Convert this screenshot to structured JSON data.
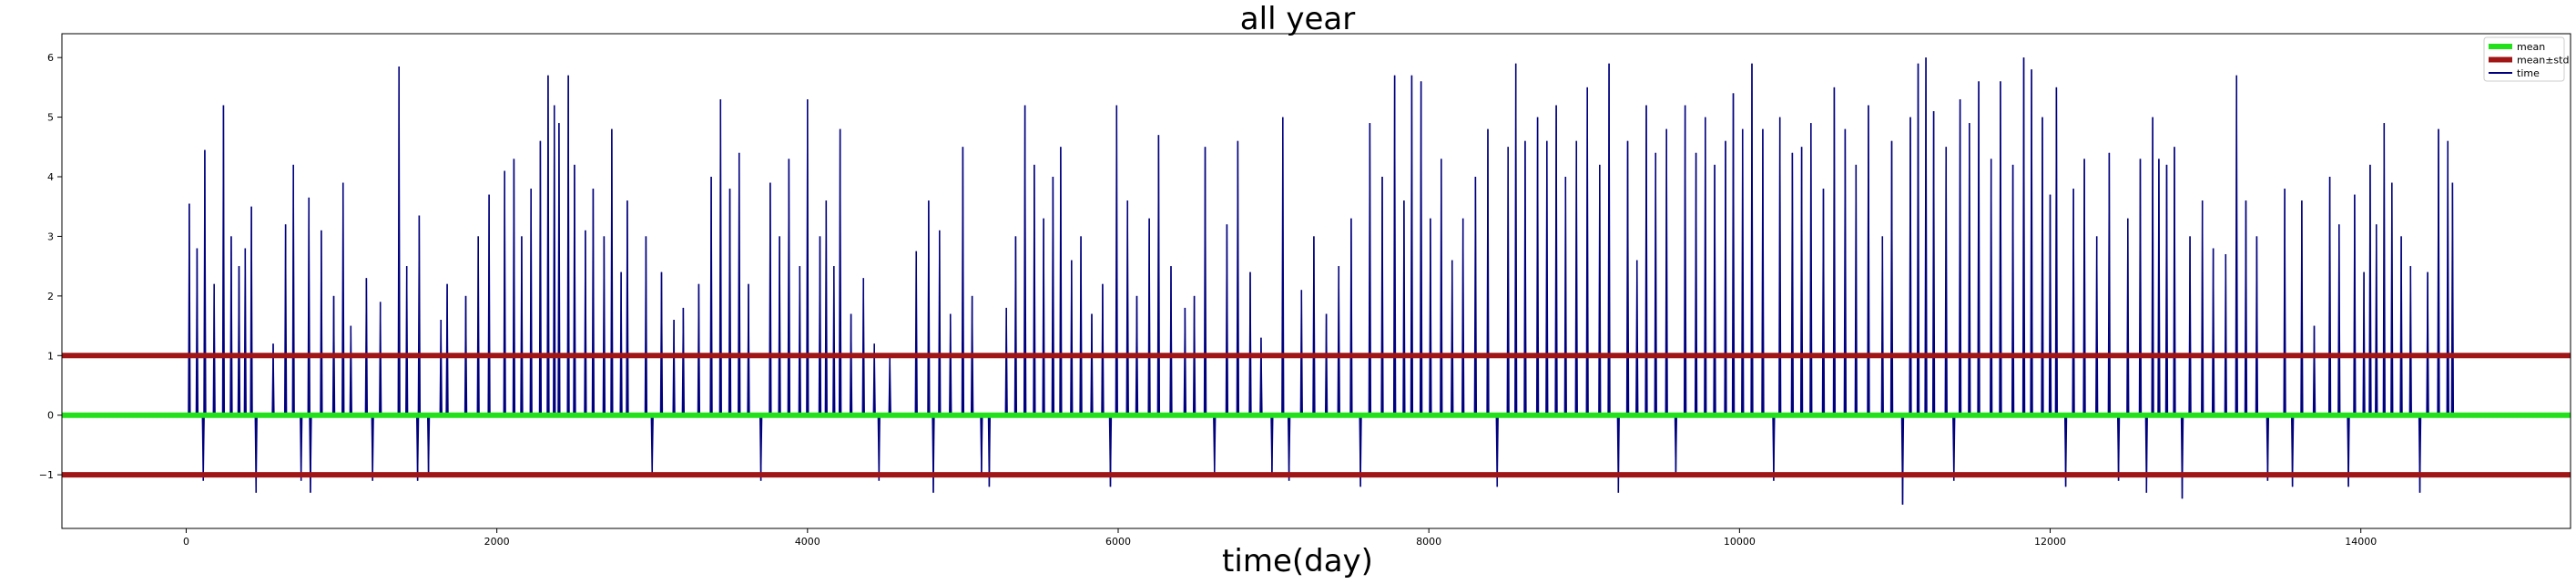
{
  "chart_data": {
    "type": "line",
    "title": "all year",
    "xlabel": "time(day)",
    "ylabel": "",
    "xlim": [
      -800,
      15350
    ],
    "ylim": [
      -1.9,
      6.4
    ],
    "x_ticks": [
      0,
      2000,
      4000,
      6000,
      8000,
      10000,
      12000,
      14000
    ],
    "x_tick_labels": [
      "0",
      "2000",
      "4000",
      "6000",
      "8000",
      "10000",
      "12000",
      "14000"
    ],
    "y_ticks": [
      -1,
      0,
      1,
      2,
      3,
      4,
      5,
      6
    ],
    "y_tick_labels": [
      "−1",
      "0",
      "1",
      "2",
      "3",
      "4",
      "5",
      "6"
    ],
    "grid": false,
    "legend_position": "top-right",
    "series": [
      {
        "name": "mean",
        "type": "hline",
        "value": 0.0,
        "color": "#22e01a"
      },
      {
        "name": "mean±std",
        "type": "hline",
        "values": [
          1.0,
          -1.0
        ],
        "color": "#a01616"
      },
      {
        "name": "time",
        "type": "line",
        "color": "#00007f",
        "x_range": [
          0,
          14600
        ],
        "baseline": 0.0,
        "peaks": [
          {
            "x": 20,
            "y": 3.55
          },
          {
            "x": 70,
            "y": 2.8
          },
          {
            "x": 110,
            "y": -1.1
          },
          {
            "x": 120,
            "y": 4.45
          },
          {
            "x": 180,
            "y": 2.2
          },
          {
            "x": 240,
            "y": 5.2
          },
          {
            "x": 290,
            "y": 3.0
          },
          {
            "x": 340,
            "y": 2.5
          },
          {
            "x": 380,
            "y": 2.8
          },
          {
            "x": 420,
            "y": 3.5
          },
          {
            "x": 450,
            "y": -1.3
          },
          {
            "x": 560,
            "y": 1.2
          },
          {
            "x": 640,
            "y": 3.2
          },
          {
            "x": 690,
            "y": 4.2
          },
          {
            "x": 740,
            "y": -1.1
          },
          {
            "x": 790,
            "y": 3.65
          },
          {
            "x": 800,
            "y": -1.3
          },
          {
            "x": 870,
            "y": 3.1
          },
          {
            "x": 950,
            "y": 2.0
          },
          {
            "x": 1010,
            "y": 3.9
          },
          {
            "x": 1060,
            "y": 1.5
          },
          {
            "x": 1160,
            "y": 2.3
          },
          {
            "x": 1200,
            "y": -1.1
          },
          {
            "x": 1250,
            "y": 1.9
          },
          {
            "x": 1370,
            "y": 5.85
          },
          {
            "x": 1420,
            "y": 2.5
          },
          {
            "x": 1490,
            "y": -1.1
          },
          {
            "x": 1500,
            "y": 3.35
          },
          {
            "x": 1560,
            "y": -1.0
          },
          {
            "x": 1640,
            "y": 1.6
          },
          {
            "x": 1680,
            "y": 2.2
          },
          {
            "x": 1800,
            "y": 2.0
          },
          {
            "x": 1880,
            "y": 3.0
          },
          {
            "x": 1950,
            "y": 3.7
          },
          {
            "x": 2050,
            "y": 4.1
          },
          {
            "x": 2110,
            "y": 4.3
          },
          {
            "x": 2160,
            "y": 3.0
          },
          {
            "x": 2220,
            "y": 3.8
          },
          {
            "x": 2280,
            "y": 4.6
          },
          {
            "x": 2330,
            "y": 5.7
          },
          {
            "x": 2370,
            "y": 5.2
          },
          {
            "x": 2400,
            "y": 4.9
          },
          {
            "x": 2460,
            "y": 5.7
          },
          {
            "x": 2500,
            "y": 4.2
          },
          {
            "x": 2570,
            "y": 3.1
          },
          {
            "x": 2620,
            "y": 3.8
          },
          {
            "x": 2690,
            "y": 3.0
          },
          {
            "x": 2740,
            "y": 4.8
          },
          {
            "x": 2800,
            "y": 2.4
          },
          {
            "x": 2840,
            "y": 3.6
          },
          {
            "x": 2960,
            "y": 3.0
          },
          {
            "x": 3000,
            "y": -1.0
          },
          {
            "x": 3060,
            "y": 2.4
          },
          {
            "x": 3140,
            "y": 1.6
          },
          {
            "x": 3200,
            "y": 1.8
          },
          {
            "x": 3300,
            "y": 2.2
          },
          {
            "x": 3380,
            "y": 4.0
          },
          {
            "x": 3440,
            "y": 5.3
          },
          {
            "x": 3500,
            "y": 3.8
          },
          {
            "x": 3560,
            "y": 4.4
          },
          {
            "x": 3620,
            "y": 2.2
          },
          {
            "x": 3700,
            "y": -1.1
          },
          {
            "x": 3760,
            "y": 3.9
          },
          {
            "x": 3820,
            "y": 3.0
          },
          {
            "x": 3880,
            "y": 4.3
          },
          {
            "x": 3950,
            "y": 2.5
          },
          {
            "x": 4000,
            "y": 5.3
          },
          {
            "x": 4080,
            "y": 3.0
          },
          {
            "x": 4120,
            "y": 3.6
          },
          {
            "x": 4170,
            "y": 2.5
          },
          {
            "x": 4210,
            "y": 4.8
          },
          {
            "x": 4280,
            "y": 1.7
          },
          {
            "x": 4360,
            "y": 2.3
          },
          {
            "x": 4430,
            "y": 1.2
          },
          {
            "x": 4460,
            "y": -1.1
          },
          {
            "x": 4530,
            "y": 1.0
          },
          {
            "x": 4700,
            "y": 2.75
          },
          {
            "x": 4780,
            "y": 3.6
          },
          {
            "x": 4810,
            "y": -1.3
          },
          {
            "x": 4850,
            "y": 3.1
          },
          {
            "x": 4920,
            "y": 1.7
          },
          {
            "x": 5000,
            "y": 4.5
          },
          {
            "x": 5060,
            "y": 2.0
          },
          {
            "x": 5120,
            "y": -1.0
          },
          {
            "x": 5170,
            "y": -1.2
          },
          {
            "x": 5280,
            "y": 1.8
          },
          {
            "x": 5340,
            "y": 3.0
          },
          {
            "x": 5400,
            "y": 5.2
          },
          {
            "x": 5460,
            "y": 4.2
          },
          {
            "x": 5520,
            "y": 3.3
          },
          {
            "x": 5580,
            "y": 4.0
          },
          {
            "x": 5630,
            "y": 4.5
          },
          {
            "x": 5700,
            "y": 2.6
          },
          {
            "x": 5760,
            "y": 3.0
          },
          {
            "x": 5830,
            "y": 1.7
          },
          {
            "x": 5900,
            "y": 2.2
          },
          {
            "x": 5950,
            "y": -1.2
          },
          {
            "x": 5990,
            "y": 5.2
          },
          {
            "x": 6060,
            "y": 3.6
          },
          {
            "x": 6120,
            "y": 2.0
          },
          {
            "x": 6200,
            "y": 3.3
          },
          {
            "x": 6260,
            "y": 4.7
          },
          {
            "x": 6340,
            "y": 2.5
          },
          {
            "x": 6430,
            "y": 1.8
          },
          {
            "x": 6490,
            "y": 2.0
          },
          {
            "x": 6560,
            "y": 4.5
          },
          {
            "x": 6620,
            "y": -1.0
          },
          {
            "x": 6700,
            "y": 3.2
          },
          {
            "x": 6770,
            "y": 4.6
          },
          {
            "x": 6850,
            "y": 2.4
          },
          {
            "x": 6920,
            "y": 1.3
          },
          {
            "x": 6990,
            "y": -1.0
          },
          {
            "x": 7060,
            "y": 5.0
          },
          {
            "x": 7100,
            "y": -1.1
          },
          {
            "x": 7180,
            "y": 2.1
          },
          {
            "x": 7260,
            "y": 3.0
          },
          {
            "x": 7340,
            "y": 1.7
          },
          {
            "x": 7420,
            "y": 2.5
          },
          {
            "x": 7500,
            "y": 3.3
          },
          {
            "x": 7560,
            "y": -1.2
          },
          {
            "x": 7620,
            "y": 4.9
          },
          {
            "x": 7700,
            "y": 4.0
          },
          {
            "x": 7780,
            "y": 5.7
          },
          {
            "x": 7840,
            "y": 3.6
          },
          {
            "x": 7890,
            "y": 5.7
          },
          {
            "x": 7950,
            "y": 5.6
          },
          {
            "x": 8010,
            "y": 3.3
          },
          {
            "x": 8080,
            "y": 4.3
          },
          {
            "x": 8150,
            "y": 2.6
          },
          {
            "x": 8220,
            "y": 3.3
          },
          {
            "x": 8300,
            "y": 4.0
          },
          {
            "x": 8380,
            "y": 4.8
          },
          {
            "x": 8440,
            "y": -1.2
          },
          {
            "x": 8510,
            "y": 4.5
          },
          {
            "x": 8560,
            "y": 5.9
          },
          {
            "x": 8620,
            "y": 4.6
          },
          {
            "x": 8700,
            "y": 5.0
          },
          {
            "x": 8760,
            "y": 4.6
          },
          {
            "x": 8820,
            "y": 5.2
          },
          {
            "x": 8880,
            "y": 4.0
          },
          {
            "x": 8950,
            "y": 4.6
          },
          {
            "x": 9020,
            "y": 5.5
          },
          {
            "x": 9100,
            "y": 4.2
          },
          {
            "x": 9160,
            "y": 5.9
          },
          {
            "x": 9220,
            "y": -1.3
          },
          {
            "x": 9280,
            "y": 4.6
          },
          {
            "x": 9340,
            "y": 2.6
          },
          {
            "x": 9400,
            "y": 5.2
          },
          {
            "x": 9460,
            "y": 4.4
          },
          {
            "x": 9530,
            "y": 4.8
          },
          {
            "x": 9590,
            "y": -1.0
          },
          {
            "x": 9650,
            "y": 5.2
          },
          {
            "x": 9720,
            "y": 4.4
          },
          {
            "x": 9780,
            "y": 5.0
          },
          {
            "x": 9840,
            "y": 4.2
          },
          {
            "x": 9910,
            "y": 4.6
          },
          {
            "x": 9960,
            "y": 5.4
          },
          {
            "x": 10020,
            "y": 4.8
          },
          {
            "x": 10080,
            "y": 5.9
          },
          {
            "x": 10150,
            "y": 4.8
          },
          {
            "x": 10220,
            "y": -1.1
          },
          {
            "x": 10260,
            "y": 5.0
          },
          {
            "x": 10340,
            "y": 4.4
          },
          {
            "x": 10400,
            "y": 4.5
          },
          {
            "x": 10460,
            "y": 4.9
          },
          {
            "x": 10540,
            "y": 3.8
          },
          {
            "x": 10610,
            "y": 5.5
          },
          {
            "x": 10680,
            "y": 4.8
          },
          {
            "x": 10750,
            "y": 4.2
          },
          {
            "x": 10830,
            "y": 5.2
          },
          {
            "x": 10920,
            "y": 3.0
          },
          {
            "x": 10980,
            "y": 4.6
          },
          {
            "x": 11050,
            "y": -1.5
          },
          {
            "x": 11100,
            "y": 5.0
          },
          {
            "x": 11150,
            "y": 5.9
          },
          {
            "x": 11200,
            "y": 6.0
          },
          {
            "x": 11250,
            "y": 5.1
          },
          {
            "x": 11330,
            "y": 4.5
          },
          {
            "x": 11380,
            "y": -1.1
          },
          {
            "x": 11420,
            "y": 5.3
          },
          {
            "x": 11480,
            "y": 4.9
          },
          {
            "x": 11540,
            "y": 5.6
          },
          {
            "x": 11620,
            "y": 4.3
          },
          {
            "x": 11680,
            "y": 5.6
          },
          {
            "x": 11760,
            "y": 4.2
          },
          {
            "x": 11830,
            "y": 6.0
          },
          {
            "x": 11880,
            "y": 5.8
          },
          {
            "x": 11950,
            "y": 5.0
          },
          {
            "x": 12000,
            "y": 3.7
          },
          {
            "x": 12040,
            "y": 5.5
          },
          {
            "x": 12100,
            "y": -1.2
          },
          {
            "x": 12150,
            "y": 3.8
          },
          {
            "x": 12220,
            "y": 4.3
          },
          {
            "x": 12300,
            "y": 3.0
          },
          {
            "x": 12380,
            "y": 4.4
          },
          {
            "x": 12440,
            "y": -1.1
          },
          {
            "x": 12500,
            "y": 3.3
          },
          {
            "x": 12580,
            "y": 4.3
          },
          {
            "x": 12620,
            "y": -1.3
          },
          {
            "x": 12660,
            "y": 5.0
          },
          {
            "x": 12700,
            "y": 4.3
          },
          {
            "x": 12750,
            "y": 4.2
          },
          {
            "x": 12800,
            "y": 4.5
          },
          {
            "x": 12850,
            "y": -1.4
          },
          {
            "x": 12900,
            "y": 3.0
          },
          {
            "x": 12980,
            "y": 3.6
          },
          {
            "x": 13050,
            "y": 2.8
          },
          {
            "x": 13130,
            "y": 2.7
          },
          {
            "x": 13200,
            "y": 5.7
          },
          {
            "x": 13260,
            "y": 3.6
          },
          {
            "x": 13330,
            "y": 3.0
          },
          {
            "x": 13400,
            "y": -1.1
          },
          {
            "x": 13510,
            "y": 3.8
          },
          {
            "x": 13560,
            "y": -1.2
          },
          {
            "x": 13620,
            "y": 3.6
          },
          {
            "x": 13700,
            "y": 1.5
          },
          {
            "x": 13800,
            "y": 4.0
          },
          {
            "x": 13860,
            "y": 3.2
          },
          {
            "x": 13920,
            "y": -1.2
          },
          {
            "x": 13960,
            "y": 3.7
          },
          {
            "x": 14020,
            "y": 2.4
          },
          {
            "x": 14060,
            "y": 4.2
          },
          {
            "x": 14100,
            "y": 3.2
          },
          {
            "x": 14150,
            "y": 4.9
          },
          {
            "x": 14200,
            "y": 3.9
          },
          {
            "x": 14260,
            "y": 3.0
          },
          {
            "x": 14320,
            "y": 2.5
          },
          {
            "x": 14380,
            "y": -1.3
          },
          {
            "x": 14430,
            "y": 2.4
          },
          {
            "x": 14500,
            "y": 4.8
          },
          {
            "x": 14560,
            "y": 4.6
          },
          {
            "x": 14590,
            "y": 3.9
          }
        ]
      }
    ]
  }
}
